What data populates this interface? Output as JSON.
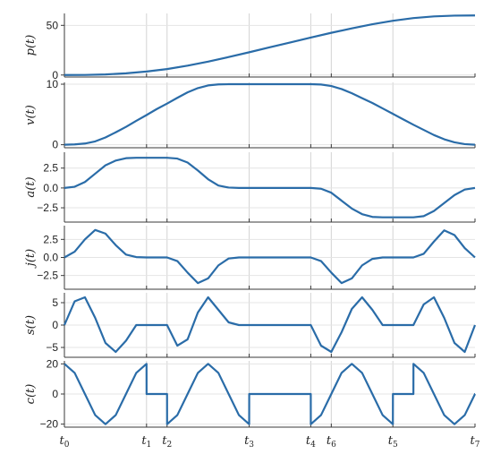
{
  "chart_data": {
    "type": "line",
    "x_ticks": [
      {
        "base": "t",
        "sub": "0",
        "x": 0
      },
      {
        "base": "t",
        "sub": "1",
        "x": 2
      },
      {
        "base": "t",
        "sub": "2",
        "x": 2.5
      },
      {
        "base": "t",
        "sub": "3",
        "x": 4.5
      },
      {
        "base": "t",
        "sub": "4",
        "x": 6
      },
      {
        "base": "t",
        "sub": "6",
        "x": 6.5
      },
      {
        "base": "t",
        "sub": "5",
        "x": 8
      },
      {
        "base": "t",
        "sub": "7",
        "x": 10
      }
    ],
    "xlim": [
      0,
      10
    ],
    "panels": [
      {
        "ylabel": "p(t)",
        "ylim": [
          -2,
          62
        ],
        "yticks": [
          "0",
          "50"
        ],
        "ytick_values": [
          0,
          50
        ],
        "x": [
          0,
          0.5,
          1,
          1.5,
          2,
          2.5,
          3,
          3.5,
          4,
          4.5,
          5,
          5.5,
          6,
          6.5,
          7,
          7.5,
          8,
          8.5,
          9,
          9.5,
          10
        ],
        "values": [
          0,
          0.1,
          0.6,
          1.7,
          3.5,
          6,
          9.4,
          13.5,
          18.1,
          22.9,
          27.9,
          32.8,
          37.7,
          42.5,
          47,
          51.1,
          54.6,
          57.3,
          59,
          59.8,
          60
        ]
      },
      {
        "ylabel": "v(t)",
        "ylim": [
          -0.5,
          10.3
        ],
        "yticks": [
          "0",
          "10"
        ],
        "ytick_values": [
          0,
          10
        ],
        "x": [
          0,
          0.25,
          0.5,
          0.75,
          1,
          1.25,
          1.5,
          1.75,
          2,
          2.25,
          2.5,
          2.75,
          3,
          3.25,
          3.5,
          3.75,
          4,
          4.25,
          4.5,
          6,
          6.25,
          6.5,
          6.75,
          7,
          7.25,
          7.5,
          7.75,
          8,
          8.25,
          8.5,
          8.75,
          9,
          9.25,
          9.5,
          9.75,
          10
        ],
        "values": [
          0,
          0.05,
          0.2,
          0.55,
          1.2,
          2.05,
          2.95,
          3.95,
          4.9,
          5.9,
          6.8,
          7.75,
          8.65,
          9.35,
          9.8,
          9.97,
          10,
          10,
          10,
          10,
          9.95,
          9.7,
          9.2,
          8.5,
          7.7,
          6.9,
          6.0,
          5.1,
          4.2,
          3.3,
          2.45,
          1.6,
          0.9,
          0.4,
          0.1,
          0
        ]
      },
      {
        "ylabel": "a(t)",
        "ylim": [
          -4.3,
          4.5
        ],
        "yticks": [
          "2.5",
          "0.0",
          "−2.5"
        ],
        "ytick_values": [
          2.5,
          0,
          -2.5
        ],
        "x": [
          0,
          0.25,
          0.5,
          0.75,
          1,
          1.25,
          1.5,
          1.75,
          2,
          2.5,
          2.75,
          3,
          3.25,
          3.5,
          3.75,
          4,
          4.25,
          4.5,
          6,
          6.25,
          6.5,
          6.75,
          7,
          7.25,
          7.5,
          7.75,
          8,
          8.5,
          8.75,
          9,
          9.25,
          9.5,
          9.75,
          10
        ],
        "values": [
          0,
          0.15,
          0.75,
          1.8,
          2.85,
          3.45,
          3.75,
          3.8,
          3.8,
          3.8,
          3.7,
          3.2,
          2.2,
          1.1,
          0.3,
          0.05,
          0,
          0,
          0,
          -0.1,
          -0.6,
          -1.6,
          -2.6,
          -3.3,
          -3.65,
          -3.7,
          -3.7,
          -3.7,
          -3.55,
          -2.9,
          -1.9,
          -0.9,
          -0.2,
          0
        ]
      },
      {
        "ylabel": "j(t)",
        "ylim": [
          -4.4,
          4.4
        ],
        "yticks": [
          "2.5",
          "0.0",
          "−2.5"
        ],
        "ytick_values": [
          2.5,
          0,
          -2.5
        ],
        "x": [
          0,
          0.25,
          0.5,
          0.75,
          1,
          1.25,
          1.5,
          1.75,
          2,
          2.5,
          2.75,
          3,
          3.25,
          3.5,
          3.75,
          4,
          4.25,
          4.5,
          6,
          6.25,
          6.5,
          6.75,
          7,
          7.25,
          7.5,
          7.75,
          8,
          8.5,
          8.75,
          9,
          9.25,
          9.5,
          9.75,
          10
        ],
        "values": [
          0,
          0.8,
          2.5,
          3.8,
          3.3,
          1.7,
          0.4,
          0.05,
          0,
          0,
          -0.5,
          -2.1,
          -3.55,
          -2.9,
          -1.1,
          -0.15,
          0,
          0,
          0,
          -0.5,
          -2.1,
          -3.55,
          -2.9,
          -1.1,
          -0.2,
          0,
          0,
          0,
          0.5,
          2.2,
          3.75,
          3.1,
          1.3,
          0
        ]
      },
      {
        "ylabel": "s(t)",
        "ylim": [
          -7.2,
          7.2
        ],
        "yticks": [
          "5",
          "0",
          "−5"
        ],
        "ytick_values": [
          5,
          0,
          -5
        ],
        "x": [
          0,
          0.25,
          0.5,
          0.75,
          1,
          1.25,
          1.5,
          1.75,
          2,
          2.5,
          2.75,
          3,
          3.25,
          3.5,
          3.75,
          4,
          4.25,
          4.5,
          6,
          6.25,
          6.5,
          6.75,
          7,
          7.25,
          7.5,
          7.75,
          8,
          8.5,
          8.75,
          9,
          9.25,
          9.5,
          9.75,
          10
        ],
        "values": [
          0,
          5.3,
          6.2,
          1.6,
          -4,
          -6,
          -3.5,
          0,
          0,
          0,
          -4.6,
          -3.2,
          2.8,
          6.2,
          3.4,
          0.6,
          0,
          0,
          0,
          -4.6,
          -6,
          -1.6,
          3.6,
          6.2,
          3.4,
          0,
          0,
          0,
          4.6,
          6.2,
          1.6,
          -4,
          -6,
          0
        ]
      },
      {
        "ylabel": "c(t)",
        "ylim": [
          -22,
          22
        ],
        "yticks": [
          "20",
          "0",
          "−20"
        ],
        "ytick_values": [
          20,
          0,
          -20
        ],
        "x": [
          0,
          0.25,
          0.5,
          0.75,
          1,
          1.25,
          1.5,
          1.75,
          2,
          2.001,
          2.5,
          2.501,
          2.75,
          3,
          3.25,
          3.5,
          3.75,
          4,
          4.25,
          4.5,
          4.501,
          6,
          6.001,
          6.25,
          6.5,
          6.75,
          7,
          7.25,
          7.5,
          7.75,
          8,
          8.001,
          8.5,
          8.501,
          8.75,
          9,
          9.25,
          9.5,
          9.75,
          10,
          10.001
        ],
        "values": [
          20,
          14,
          0,
          -14,
          -20,
          -14,
          0,
          14,
          20,
          0,
          0,
          -20,
          -14,
          0,
          14,
          20,
          14,
          0,
          -14,
          -20,
          0,
          0,
          -20,
          -14,
          0,
          14,
          20,
          14,
          0,
          -14,
          -20,
          0,
          0,
          20,
          14,
          0,
          -14,
          -20,
          -14,
          0,
          0
        ]
      }
    ]
  }
}
